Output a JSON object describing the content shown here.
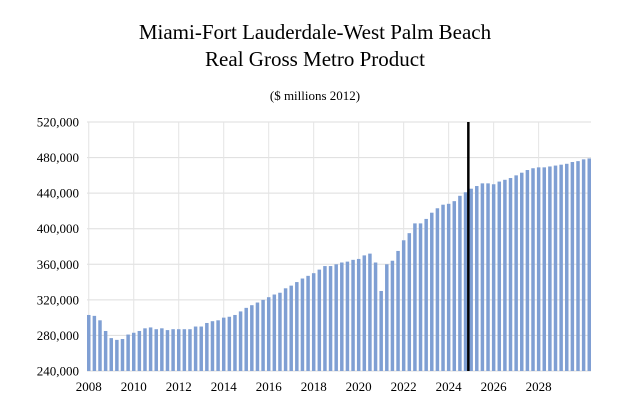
{
  "chart_data": {
    "type": "bar",
    "title": "Miami-Fort Lauderdale-West Palm Beach",
    "subtitle": "Real Gross Metro Product",
    "units_note": "($ millions 2012)",
    "ylim": [
      240000,
      520000
    ],
    "y_ticks": [
      "240,000",
      "280,000",
      "320,000",
      "360,000",
      "400,000",
      "440,000",
      "480,000",
      "520,000"
    ],
    "x_ticks": [
      "2008",
      "2010",
      "2012",
      "2014",
      "2016",
      "2018",
      "2020",
      "2022",
      "2024",
      "2026",
      "2028"
    ],
    "bar_color": "#7f9fd3",
    "forecast_line_color": "#000000",
    "grid": true,
    "start_quarter": "2008Q1",
    "forecast_start": "2025Q1",
    "values": [
      303000,
      302000,
      297000,
      285000,
      277000,
      275000,
      276000,
      281000,
      283000,
      285000,
      288000,
      289000,
      287000,
      288000,
      286000,
      287000,
      287000,
      287000,
      287000,
      290000,
      290000,
      294000,
      296000,
      297000,
      300000,
      301000,
      303000,
      307000,
      311000,
      314000,
      317000,
      320000,
      323000,
      326000,
      328000,
      333000,
      336000,
      340000,
      344000,
      347000,
      350000,
      354000,
      358000,
      358000,
      360000,
      362000,
      363000,
      365000,
      366000,
      370000,
      372000,
      362000,
      330000,
      360000,
      364000,
      375000,
      387000,
      395000,
      406000,
      406000,
      411000,
      418000,
      423000,
      427000,
      428000,
      431000,
      437000,
      441000,
      445000,
      448000,
      451000,
      451000,
      450000,
      453000,
      455000,
      457000,
      460000,
      463000,
      466000,
      468000,
      469000,
      469000,
      470000,
      471000,
      472000,
      473000,
      475000,
      476000,
      478000,
      479000
    ]
  }
}
